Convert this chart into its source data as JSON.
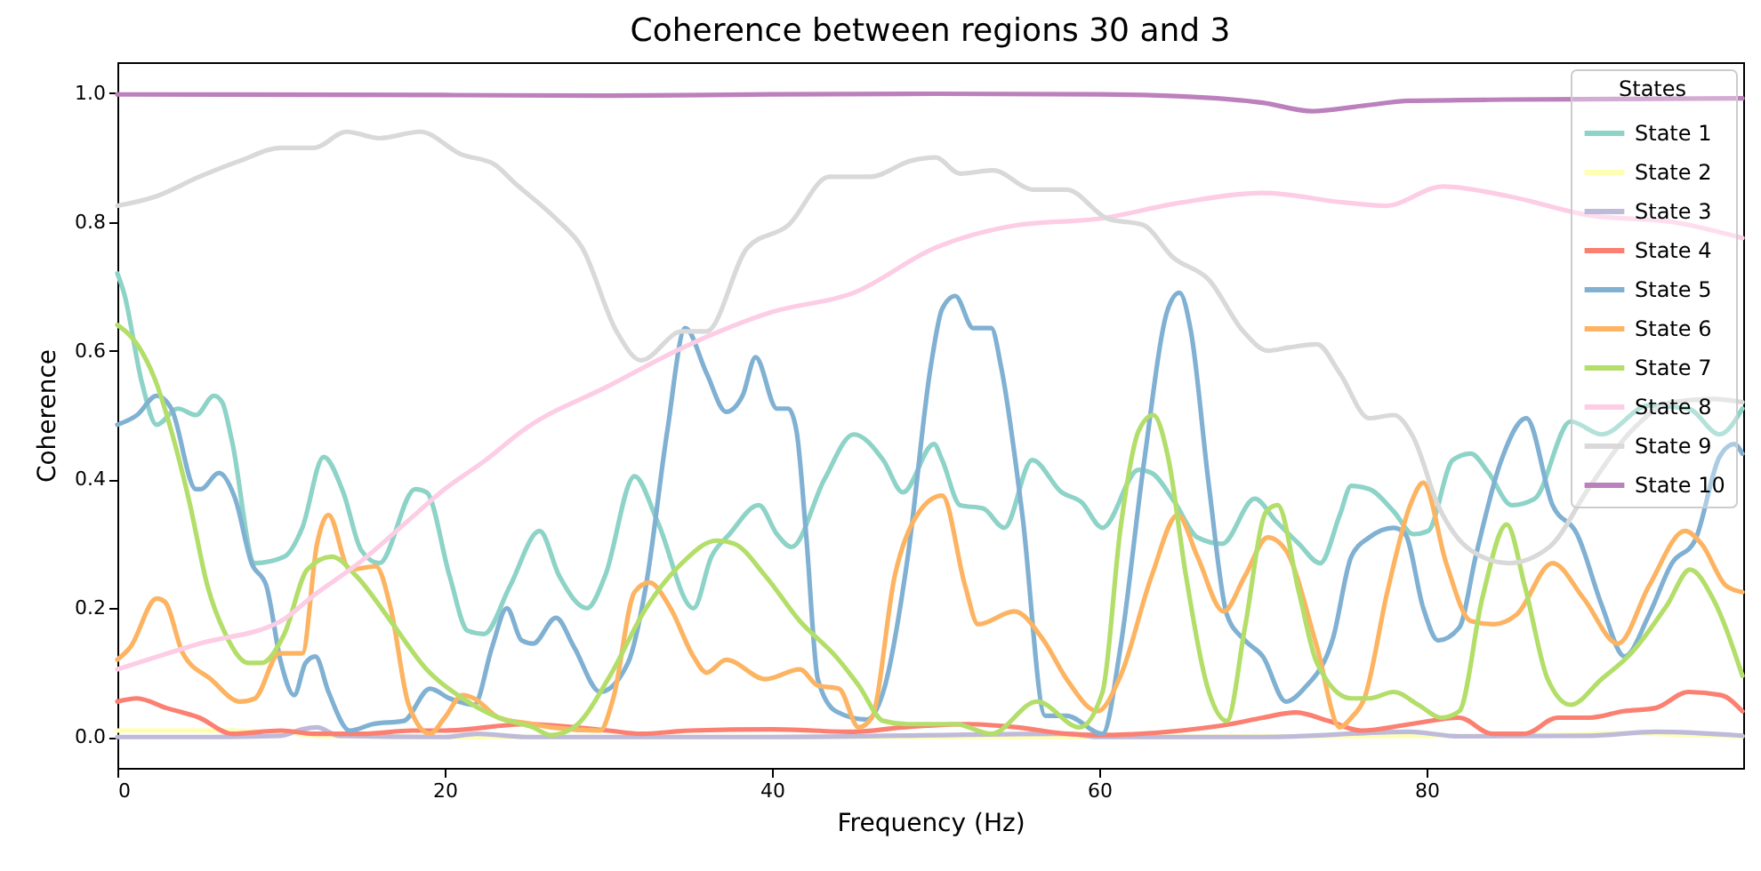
{
  "chart_data": {
    "type": "line",
    "title": "Coherence between regions 30 and 3",
    "xlabel": "Frequency (Hz)",
    "ylabel": "Coherence",
    "legend_title": "States",
    "legend": "top right",
    "grid": false,
    "xlim": [
      0,
      99.35
    ],
    "xticks": [
      0,
      20,
      40,
      60,
      80
    ],
    "ylim": [
      -0.048,
      1.048
    ],
    "yticks": [
      {
        "value": 0,
        "label": "0.0"
      },
      {
        "value": 0.2,
        "label": "0.2"
      },
      {
        "value": 0.4,
        "label": "0.4"
      },
      {
        "value": 0.6,
        "label": "0.6"
      },
      {
        "value": 0.8,
        "label": "0.8"
      },
      {
        "value": 1,
        "label": "1.0"
      }
    ],
    "series": [
      {
        "name": "State 1",
        "color": "#8dd3c7",
        "x": [
          0,
          0.4,
          1.5,
          2.4,
          3.7,
          4.8,
          5.9,
          6.4,
          7,
          8.4,
          10.2,
          11.3,
          12.6,
          13.8,
          14.9,
          16,
          18.2,
          18.9,
          20.3,
          21.4,
          22.4,
          24,
          25.8,
          27,
          28.7,
          29.8,
          31.6,
          33,
          35.2,
          36.3,
          37.4,
          39.2,
          40.3,
          41.2,
          43.2,
          45,
          46.8,
          48,
          49.9,
          50.4,
          51.5,
          52.9,
          54.2,
          55.9,
          57.7,
          58.9,
          60.2,
          62.4,
          63.2,
          64.6,
          66,
          67.5,
          69.5,
          70.8,
          72.2,
          73.5,
          74.7,
          75.4,
          76.5,
          78,
          79.2,
          80.1,
          81.6,
          82.7,
          83.8,
          85.2,
          86.6,
          88.8,
          90.7,
          93.6,
          96,
          97.9,
          99.3
        ],
        "values": [
          0.72,
          0.69,
          0.55,
          0.485,
          0.51,
          0.5,
          0.53,
          0.52,
          0.46,
          0.27,
          0.28,
          0.325,
          0.435,
          0.38,
          0.29,
          0.27,
          0.385,
          0.38,
          0.25,
          0.165,
          0.16,
          0.235,
          0.32,
          0.25,
          0.2,
          0.25,
          0.405,
          0.335,
          0.2,
          0.28,
          0.315,
          0.36,
          0.315,
          0.295,
          0.4,
          0.47,
          0.43,
          0.38,
          0.455,
          0.43,
          0.36,
          0.355,
          0.325,
          0.43,
          0.38,
          0.365,
          0.325,
          0.415,
          0.41,
          0.365,
          0.31,
          0.3,
          0.37,
          0.335,
          0.3,
          0.27,
          0.345,
          0.39,
          0.385,
          0.35,
          0.315,
          0.32,
          0.43,
          0.44,
          0.41,
          0.36,
          0.37,
          0.49,
          0.47,
          0.515,
          0.51,
          0.47,
          0.51
        ]
      },
      {
        "name": "State 2",
        "color": "#ffffb3",
        "x": [
          0,
          5,
          10,
          12,
          20,
          40,
          60,
          80,
          88,
          92,
          95,
          99.3
        ],
        "values": [
          0.01,
          0.01,
          0.008,
          0.002,
          0.0,
          0.0,
          0.0,
          0.002,
          0.003,
          0.006,
          0.004,
          0.001
        ]
      },
      {
        "name": "State 3",
        "color": "#bebada",
        "x": [
          0,
          5,
          10,
          11.3,
          12.2,
          13.5,
          20,
          22,
          25,
          40,
          58,
          60,
          70,
          79,
          82,
          90,
          94,
          99.3
        ],
        "values": [
          0.0,
          0.0,
          0.002,
          0.012,
          0.015,
          0.002,
          0.0,
          0.005,
          0.0,
          0.0,
          0.005,
          0.0,
          0.0,
          0.008,
          0.001,
          0.002,
          0.008,
          0.002
        ]
      },
      {
        "name": "State 4",
        "color": "#fb8072",
        "x": [
          0,
          1.2,
          3,
          5,
          7,
          10,
          12,
          15,
          18,
          20,
          25,
          30,
          32,
          35,
          40,
          45,
          48,
          52,
          55,
          58,
          60,
          65,
          68,
          70,
          72,
          74,
          76,
          79,
          82,
          84,
          86,
          88,
          90,
          92,
          94,
          96,
          98,
          99.3
        ],
        "values": [
          0.055,
          0.06,
          0.045,
          0.03,
          0.005,
          0.01,
          0.005,
          0.005,
          0.01,
          0.01,
          0.02,
          0.01,
          0.005,
          0.01,
          0.012,
          0.008,
          0.015,
          0.02,
          0.015,
          0.005,
          0.003,
          0.01,
          0.02,
          0.03,
          0.038,
          0.025,
          0.01,
          0.02,
          0.03,
          0.005,
          0.005,
          0.03,
          0.03,
          0.04,
          0.045,
          0.07,
          0.065,
          0.04
        ]
      },
      {
        "name": "State 5",
        "color": "#80b1d3",
        "x": [
          0,
          1.2,
          2.4,
          3.3,
          4.8,
          5.1,
          6.2,
          7.2,
          8.2,
          9.1,
          10,
          10.8,
          11.5,
          12.1,
          12.9,
          14.2,
          15.6,
          17.5,
          19.1,
          20.3,
          21.8,
          22.9,
          23.8,
          24.7,
          25.4,
          26.8,
          27.9,
          29.5,
          31.2,
          32.3,
          33.6,
          34.7,
          36,
          37.2,
          38.2,
          39,
          40.3,
          41,
          41.5,
          42.1,
          42.8,
          43.9,
          45.8,
          46.8,
          48.3,
          49.7,
          50.4,
          51.2,
          52.3,
          53.4,
          54,
          55.3,
          56.7,
          58,
          60.2,
          61.3,
          62.7,
          64.2,
          64.9,
          65.6,
          66.7,
          67.8,
          68.9,
          70,
          71.4,
          72.5,
          74.3,
          75.4,
          76.5,
          78,
          78.7,
          79.8,
          80.7,
          82,
          83,
          84.5,
          86.1,
          87.7,
          89.2,
          90.7,
          92.1,
          93.6,
          95,
          96.4,
          97.9,
          98.8,
          99.3
        ],
        "values": [
          0.485,
          0.5,
          0.53,
          0.51,
          0.385,
          0.385,
          0.41,
          0.37,
          0.27,
          0.235,
          0.115,
          0.065,
          0.115,
          0.125,
          0.07,
          0.01,
          0.02,
          0.025,
          0.075,
          0.06,
          0.05,
          0.14,
          0.2,
          0.15,
          0.145,
          0.185,
          0.14,
          0.07,
          0.115,
          0.235,
          0.475,
          0.635,
          0.565,
          0.505,
          0.53,
          0.59,
          0.51,
          0.51,
          0.475,
          0.31,
          0.09,
          0.04,
          0.027,
          0.07,
          0.28,
          0.575,
          0.665,
          0.685,
          0.635,
          0.635,
          0.575,
          0.345,
          0.033,
          0.033,
          0.005,
          0.14,
          0.42,
          0.665,
          0.69,
          0.63,
          0.39,
          0.19,
          0.15,
          0.125,
          0.055,
          0.075,
          0.155,
          0.28,
          0.31,
          0.325,
          0.315,
          0.2,
          0.15,
          0.17,
          0.28,
          0.425,
          0.495,
          0.36,
          0.315,
          0.205,
          0.125,
          0.19,
          0.27,
          0.305,
          0.435,
          0.455,
          0.44
        ]
      },
      {
        "name": "State 6",
        "color": "#fdb462",
        "x": [
          0,
          0.8,
          2.4,
          2.9,
          4,
          5.7,
          7.5,
          8.4,
          9.9,
          11.3,
          12.2,
          12.9,
          14.2,
          15.8,
          16.7,
          17.8,
          19.1,
          20,
          21.1,
          21.8,
          23.3,
          25.4,
          26.5,
          29.5,
          30.3,
          31.6,
          32.5,
          33.8,
          35.2,
          36,
          37.2,
          39.6,
          41.7,
          42.8,
          44.1,
          45.3,
          46.1,
          47.5,
          49,
          50.4,
          51.8,
          52.6,
          54.8,
          56.6,
          58,
          59.9,
          61.3,
          63.2,
          64.8,
          66,
          67.6,
          68.9,
          70.3,
          71.4,
          73.3,
          74.7,
          75.4,
          76.2,
          77.6,
          79,
          79.8,
          81.2,
          82.7,
          84.1,
          85.5,
          87.7,
          89.6,
          91.7,
          93.6,
          95.8,
          96.8,
          98.3,
          99.3
        ],
        "values": [
          0.12,
          0.14,
          0.215,
          0.21,
          0.13,
          0.09,
          0.055,
          0.06,
          0.13,
          0.13,
          0.3,
          0.345,
          0.26,
          0.265,
          0.2,
          0.05,
          0.005,
          0.03,
          0.065,
          0.06,
          0.03,
          0.02,
          0.015,
          0.01,
          0.06,
          0.225,
          0.24,
          0.2,
          0.125,
          0.1,
          0.12,
          0.09,
          0.105,
          0.08,
          0.075,
          0.015,
          0.03,
          0.25,
          0.35,
          0.375,
          0.235,
          0.175,
          0.195,
          0.15,
          0.09,
          0.04,
          0.095,
          0.25,
          0.345,
          0.28,
          0.195,
          0.25,
          0.31,
          0.29,
          0.14,
          0.015,
          0.03,
          0.06,
          0.225,
          0.36,
          0.395,
          0.27,
          0.18,
          0.175,
          0.19,
          0.27,
          0.215,
          0.145,
          0.235,
          0.32,
          0.3,
          0.235,
          0.225
        ]
      },
      {
        "name": "State 7",
        "color": "#b3de69",
        "x": [
          0,
          1.2,
          2.3,
          3.3,
          4.4,
          5.5,
          6.6,
          8,
          8.8,
          10.2,
          11.6,
          13.1,
          14.6,
          16.7,
          18.9,
          21.1,
          23.3,
          25.4,
          26.5,
          27.9,
          30.1,
          32.3,
          34.5,
          36.6,
          37.7,
          39.6,
          41.7,
          43.9,
          45.3,
          46.8,
          48.3,
          50.4,
          51.2,
          53.4,
          56.2,
          58.8,
          60.2,
          61.3,
          62.4,
          63.3,
          64.2,
          65.3,
          66.7,
          67.8,
          68.9,
          70.2,
          70.9,
          72.2,
          73.3,
          75.4,
          76.5,
          78,
          79.5,
          80.9,
          82,
          83.4,
          84.9,
          86,
          87.4,
          88.8,
          90.7,
          92.5,
          94.7,
          96.1,
          97.5,
          99.3
        ],
        "values": [
          0.64,
          0.61,
          0.555,
          0.475,
          0.365,
          0.235,
          0.16,
          0.115,
          0.115,
          0.16,
          0.26,
          0.28,
          0.25,
          0.18,
          0.105,
          0.06,
          0.03,
          0.015,
          0.003,
          0.015,
          0.095,
          0.2,
          0.27,
          0.305,
          0.3,
          0.25,
          0.18,
          0.125,
          0.08,
          0.025,
          0.02,
          0.02,
          0.02,
          0.005,
          0.055,
          0.015,
          0.07,
          0.325,
          0.475,
          0.5,
          0.435,
          0.25,
          0.07,
          0.025,
          0.17,
          0.35,
          0.36,
          0.225,
          0.115,
          0.06,
          0.06,
          0.07,
          0.05,
          0.03,
          0.04,
          0.215,
          0.33,
          0.235,
          0.09,
          0.05,
          0.09,
          0.13,
          0.205,
          0.26,
          0.215,
          0.095
        ]
      },
      {
        "name": "State 8",
        "color": "#fccde5",
        "x": [
          0,
          5,
          10,
          12,
          15,
          17.5,
          20,
          22.5,
          25,
          30,
          35,
          40,
          45,
          50,
          55,
          60,
          65,
          70,
          75,
          77.5,
          81,
          85,
          90,
          95,
          99.3
        ],
        "values": [
          0.105,
          0.145,
          0.18,
          0.22,
          0.275,
          0.33,
          0.385,
          0.43,
          0.48,
          0.545,
          0.61,
          0.66,
          0.69,
          0.76,
          0.795,
          0.805,
          0.83,
          0.845,
          0.83,
          0.825,
          0.855,
          0.84,
          0.81,
          0.8,
          0.775
        ]
      },
      {
        "name": "State 9",
        "color": "#d9d9d9",
        "x": [
          0,
          2.4,
          5,
          7.5,
          10,
          12,
          14,
          16,
          18.5,
          21,
          23,
          24.3,
          26.8,
          28.4,
          30.5,
          32,
          34.5,
          36,
          38.5,
          41,
          43.5,
          46,
          48.5,
          50,
          51.5,
          53.5,
          56,
          58,
          60.5,
          62.7,
          64.5,
          66.7,
          68.8,
          70.3,
          71.6,
          73.3,
          74.7,
          76.5,
          78,
          79.2,
          80.7,
          82.7,
          85,
          87.5,
          90,
          92.5,
          95,
          97.5,
          99.3
        ],
        "values": [
          0.825,
          0.84,
          0.87,
          0.895,
          0.915,
          0.915,
          0.94,
          0.93,
          0.94,
          0.905,
          0.89,
          0.86,
          0.805,
          0.76,
          0.63,
          0.585,
          0.63,
          0.63,
          0.76,
          0.795,
          0.87,
          0.87,
          0.895,
          0.9,
          0.875,
          0.88,
          0.85,
          0.85,
          0.805,
          0.795,
          0.745,
          0.71,
          0.63,
          0.6,
          0.605,
          0.61,
          0.565,
          0.495,
          0.5,
          0.465,
          0.36,
          0.29,
          0.27,
          0.295,
          0.39,
          0.475,
          0.52,
          0.525,
          0.52
        ]
      },
      {
        "name": "State 10",
        "color": "#bc80bd",
        "x": [
          0,
          20,
          30,
          40,
          50,
          60,
          65,
          70,
          73,
          76,
          79,
          85,
          99.3
        ],
        "values": [
          0.998,
          0.997,
          0.996,
          0.998,
          0.999,
          0.998,
          0.995,
          0.985,
          0.972,
          0.98,
          0.988,
          0.99,
          0.992
        ]
      }
    ]
  }
}
